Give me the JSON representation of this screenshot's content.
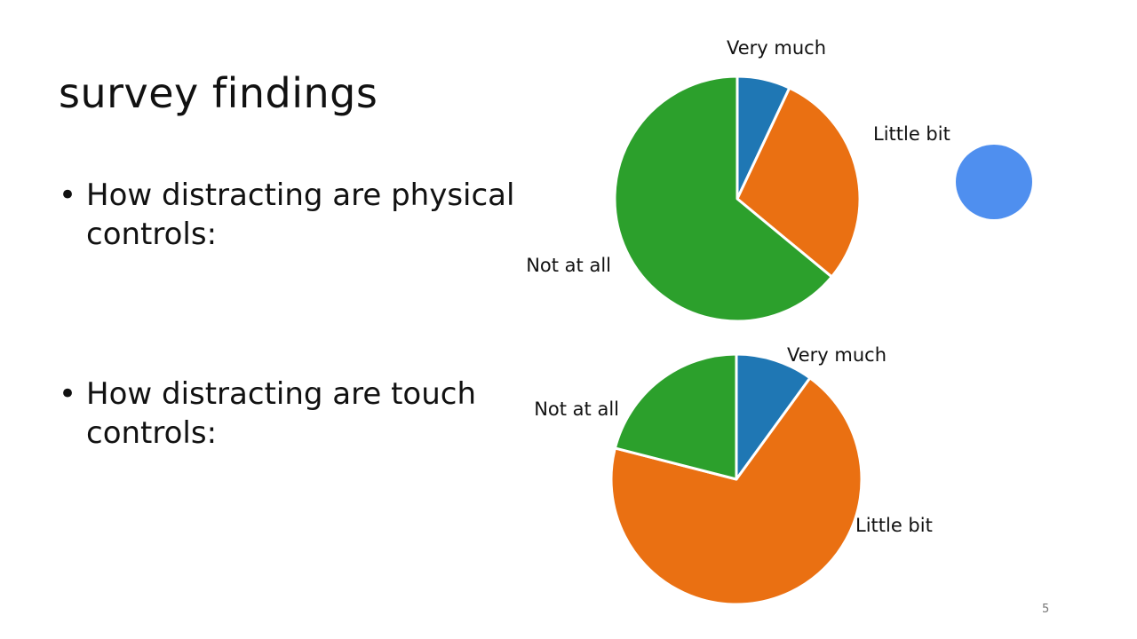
{
  "slide": {
    "title": "survey findings",
    "bullets": [
      {
        "marker": "•",
        "text": "How distracting are physical controls:"
      },
      {
        "marker": "•",
        "text": "How distracting are touch controls:"
      }
    ],
    "slide_number": "5",
    "decoration": {
      "shape": "circle",
      "color": "#4F8FEF"
    }
  },
  "colors": {
    "Very much": "#1F77B4",
    "Little bit": "#EA7012",
    "Not at all": "#2CA02C"
  },
  "chart_data": [
    {
      "type": "pie",
      "categories": [
        "Very much",
        "Little bit",
        "Not at all"
      ],
      "values": [
        7,
        29,
        64
      ],
      "unit": "%",
      "start_angle": "12 o'clock",
      "direction": "clockwise",
      "labels_shown": [
        "Very much",
        "Little bit",
        "Not at all"
      ]
    },
    {
      "type": "pie",
      "categories": [
        "Very much",
        "Little bit",
        "Not at all"
      ],
      "values": [
        10,
        69,
        21
      ],
      "unit": "%",
      "start_angle": "12 o'clock",
      "direction": "clockwise",
      "labels_shown": [
        "Very much",
        "Little bit",
        "Not at all"
      ]
    }
  ]
}
